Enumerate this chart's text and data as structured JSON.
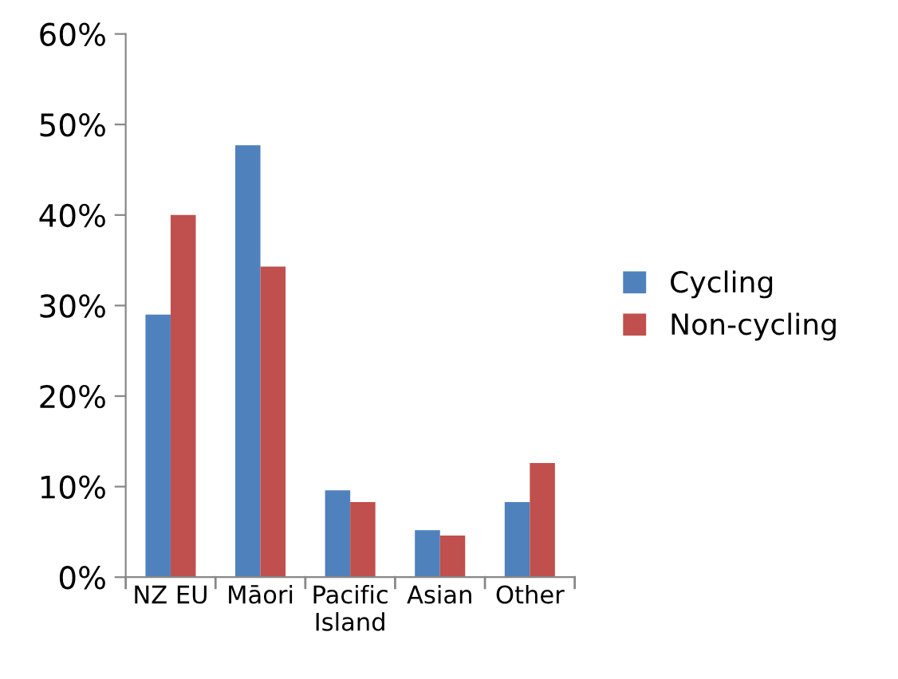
{
  "chart_data": {
    "type": "bar",
    "categories": [
      "NZ EU",
      "Māori",
      "Pacific\nIsland",
      "Asian",
      "Other"
    ],
    "series": [
      {
        "name": "Cycling",
        "color": "#4f81bd",
        "values": [
          29.0,
          47.7,
          9.6,
          5.2,
          8.3
        ]
      },
      {
        "name": "Non-cycling",
        "color": "#c0504d",
        "values": [
          40.0,
          34.3,
          8.3,
          4.6,
          12.6
        ]
      }
    ],
    "ylim": [
      0,
      60
    ],
    "yticks": [
      {
        "value": 0,
        "label": "0%"
      },
      {
        "value": 10,
        "label": "10%"
      },
      {
        "value": 20,
        "label": "20%"
      },
      {
        "value": 30,
        "label": "30%"
      },
      {
        "value": 40,
        "label": "40%"
      },
      {
        "value": 50,
        "label": "50%"
      },
      {
        "value": 60,
        "label": "60%"
      }
    ],
    "grid": false,
    "legend": "right"
  }
}
